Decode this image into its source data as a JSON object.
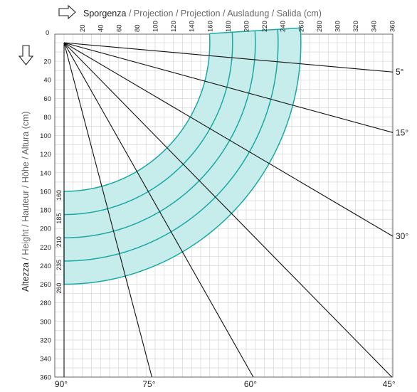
{
  "chart": {
    "x_title_main": "Sporgenza",
    "x_title_rest": " / Projection / Projection / Ausladung / Salida (cm)",
    "y_title_main": "Altezza",
    "y_title_rest": " / Height / Hauteur / Höhe / Altura  (cm)",
    "origin_label": "0",
    "accent_color": "#1aa9a2",
    "fill_color": "#c6eceb",
    "arrow_icons": [
      "right-arrow-icon",
      "down-arrow-icon"
    ]
  },
  "chart_data": {
    "type": "awning-projection-diagram",
    "x_axis": {
      "label": "Sporgenza / Projection / Projection / Ausladung / Salida (cm)",
      "ticks": [
        20,
        40,
        60,
        80,
        100,
        120,
        140,
        160,
        180,
        200,
        220,
        240,
        260,
        280,
        300,
        320,
        340,
        360
      ],
      "range": [
        0,
        360
      ]
    },
    "y_axis": {
      "label": "Altezza / Height / Hauteur / Höhe / Altura (cm)",
      "ticks": [
        20,
        40,
        60,
        80,
        100,
        120,
        140,
        160,
        180,
        200,
        220,
        240,
        260,
        280,
        300,
        320,
        340,
        360
      ],
      "range": [
        0,
        360
      ],
      "inverted": true
    },
    "grid": true,
    "arm_lengths_cm": [
      "160",
      "185",
      "210",
      "235",
      "260"
    ],
    "arm_values": [
      160,
      185,
      210,
      235,
      260
    ],
    "angle_lines": [
      {
        "label": "5°",
        "deg": 5
      },
      {
        "label": "15°",
        "deg": 15
      },
      {
        "label": "30°",
        "deg": 30
      },
      {
        "label": "45°",
        "deg": 45
      },
      {
        "label": "60°",
        "deg": 60
      },
      {
        "label": "75°",
        "deg": 75
      },
      {
        "label": "90°",
        "deg": 90
      }
    ],
    "usable_range_deg": [
      5,
      90
    ]
  }
}
